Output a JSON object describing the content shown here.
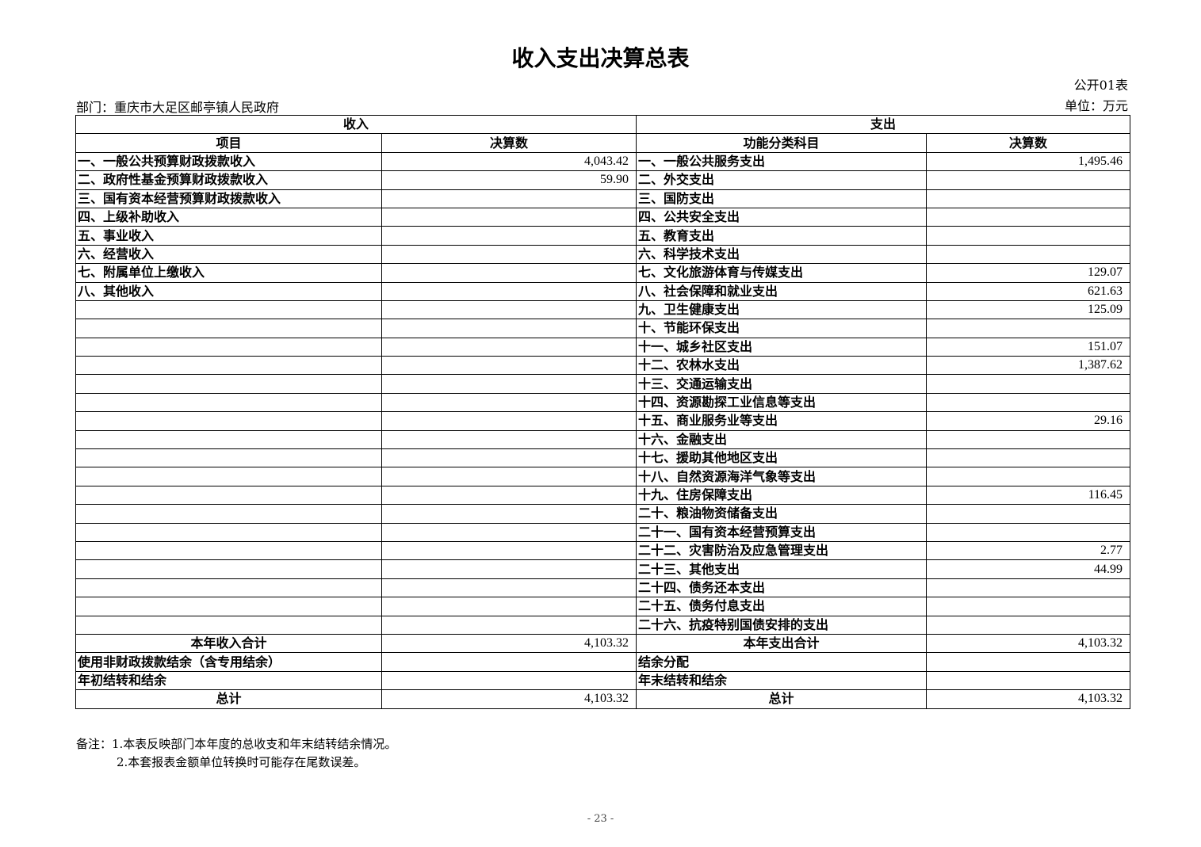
{
  "title": "收入支出决算总表",
  "table_no": "公开01表",
  "department": "部门：重庆市大足区邮亭镇人民政府",
  "unit": "单位：万元",
  "headers": {
    "income": "收入",
    "expense": "支出",
    "item": "项目",
    "amount": "决算数",
    "func": "功能分类科目",
    "amount2": "决算数"
  },
  "rows": [
    [
      "一、一般公共预算财政拨款收入",
      "4,043.42",
      "一、一般公共服务支出",
      "1,495.46"
    ],
    [
      "二、政府性基金预算财政拨款收入",
      "59.90",
      "二、外交支出",
      ""
    ],
    [
      "三、国有资本经营预算财政拨款收入",
      "",
      "三、国防支出",
      ""
    ],
    [
      "四、上级补助收入",
      "",
      "四、公共安全支出",
      ""
    ],
    [
      "五、事业收入",
      "",
      "五、教育支出",
      ""
    ],
    [
      "六、经营收入",
      "",
      "六、科学技术支出",
      ""
    ],
    [
      "七、附属单位上缴收入",
      "",
      "七、文化旅游体育与传媒支出",
      "129.07"
    ],
    [
      "八、其他收入",
      "",
      "八、社会保障和就业支出",
      "621.63"
    ],
    [
      "",
      "",
      "九、卫生健康支出",
      "125.09"
    ],
    [
      "",
      "",
      "十、节能环保支出",
      ""
    ],
    [
      "",
      "",
      "十一、城乡社区支出",
      "151.07"
    ],
    [
      "",
      "",
      "十二、农林水支出",
      "1,387.62"
    ],
    [
      "",
      "",
      "十三、交通运输支出",
      ""
    ],
    [
      "",
      "",
      "十四、资源勘探工业信息等支出",
      ""
    ],
    [
      "",
      "",
      "十五、商业服务业等支出",
      "29.16"
    ],
    [
      "",
      "",
      "十六、金融支出",
      ""
    ],
    [
      "",
      "",
      "十七、援助其他地区支出",
      ""
    ],
    [
      "",
      "",
      "十八、自然资源海洋气象等支出",
      ""
    ],
    [
      "",
      "",
      "十九、住房保障支出",
      "116.45"
    ],
    [
      "",
      "",
      "二十、粮油物资储备支出",
      ""
    ],
    [
      "",
      "",
      "二十一、国有资本经营预算支出",
      ""
    ],
    [
      "",
      "",
      "二十二、灾害防治及应急管理支出",
      "2.77"
    ],
    [
      "",
      "",
      "二十三、其他支出",
      "44.99"
    ],
    [
      "",
      "",
      "二十四、债务还本支出",
      ""
    ],
    [
      "",
      "",
      "二十五、债务付息支出",
      ""
    ],
    [
      "",
      "",
      "二十六、抗疫特别国债安排的支出",
      ""
    ]
  ],
  "summary_rows": [
    [
      "本年收入合计",
      "4,103.32",
      "本年支出合计",
      "4,103.32",
      true
    ],
    [
      "使用非财政拨款结余（含专用结余）",
      "",
      "结余分配",
      "",
      false
    ],
    [
      "年初结转和结余",
      "",
      "年末结转和结余",
      "",
      false
    ],
    [
      "总计",
      "4,103.32",
      "总计",
      "4,103.32",
      true
    ]
  ],
  "notes": [
    "备注：1.本表反映部门本年度的总收支和年末结转结余情况。",
    "2.本套报表金额单位转换时可能存在尾数误差。"
  ],
  "page_number": "- 23 -"
}
